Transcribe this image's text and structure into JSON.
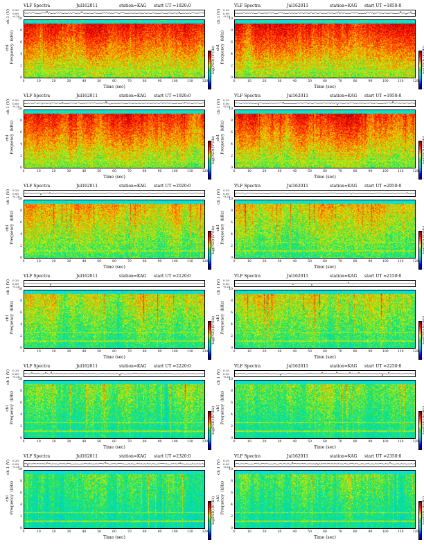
{
  "common": {
    "title": "VLF Spectra",
    "ts_ylabel": "ch 1 (V)",
    "ts_ticks": [
      "0.20",
      "0.00",
      "-0.20"
    ],
    "spec_ylabel": "ch1\nFrequency  (kHz)",
    "spec_yticks": [
      "10",
      "8",
      "6",
      "4",
      "2",
      "0"
    ],
    "xlabel": "Time  (sec)",
    "xticks": [
      "0",
      "10",
      "20",
      "30",
      "40",
      "50",
      "60",
      "70",
      "80",
      "90",
      "100",
      "110",
      "120"
    ],
    "cbar_label": "log(PSD) (V²/Hz)",
    "cbar_ticks": [
      "-",
      "-"
    ]
  },
  "colors": {
    "colormap": [
      "#00007a",
      "#0000ff",
      "#00a0ff",
      "#00e0d0",
      "#10e060",
      "#e0f000",
      "#ff7000",
      "#ff0000",
      "#8a0000"
    ],
    "band_top": "#00e0e0"
  },
  "panels": [
    {
      "date": "Jul162011",
      "station": "station=KAG",
      "start": "start  UT =1820:0"
    },
    {
      "date": "Jul162011",
      "station": "station=KAG",
      "start": "start  UT =1850:0"
    },
    {
      "date": "Jul162011",
      "station": "station=KAG",
      "start": "start  UT =1920:0"
    },
    {
      "date": "Jul162011",
      "station": "station=KAG",
      "start": "start  UT =1950:0"
    },
    {
      "date": "Jul162011",
      "station": "station=KAG",
      "start": "start  UT =2020:0"
    },
    {
      "date": "Jul162011",
      "station": "station=KAG",
      "start": "start  UT =2050:0"
    },
    {
      "date": "Jul162011",
      "station": "station=KAG",
      "start": "start  UT =2120:0"
    },
    {
      "date": "Jul162011",
      "station": "station=KAG",
      "start": "start  UT =2150:0"
    },
    {
      "date": "Jul162011",
      "station": "station=KAG",
      "start": "start  UT =2220:0"
    },
    {
      "date": "Jul162011",
      "station": "station=KAG",
      "start": "start  UT =2250:0"
    },
    {
      "date": "Jul162011",
      "station": "station=KAG",
      "start": "start  UT =2320:0"
    },
    {
      "date": "Jul162011",
      "station": "station=KAG",
      "start": "start  UT =2350:0"
    }
  ],
  "chart_data": {
    "type": "heatmap",
    "panel_count": 12,
    "x_unit": "sec",
    "xlim": [
      0,
      120
    ],
    "ylim_khz": [
      0,
      10
    ],
    "ts_ylim": [
      -0.2,
      0.2
    ],
    "activity_levels": [
      0.92,
      0.92,
      0.88,
      0.88,
      0.62,
      0.58,
      0.52,
      0.48,
      0.38,
      0.38,
      0.3,
      0.3
    ]
  }
}
